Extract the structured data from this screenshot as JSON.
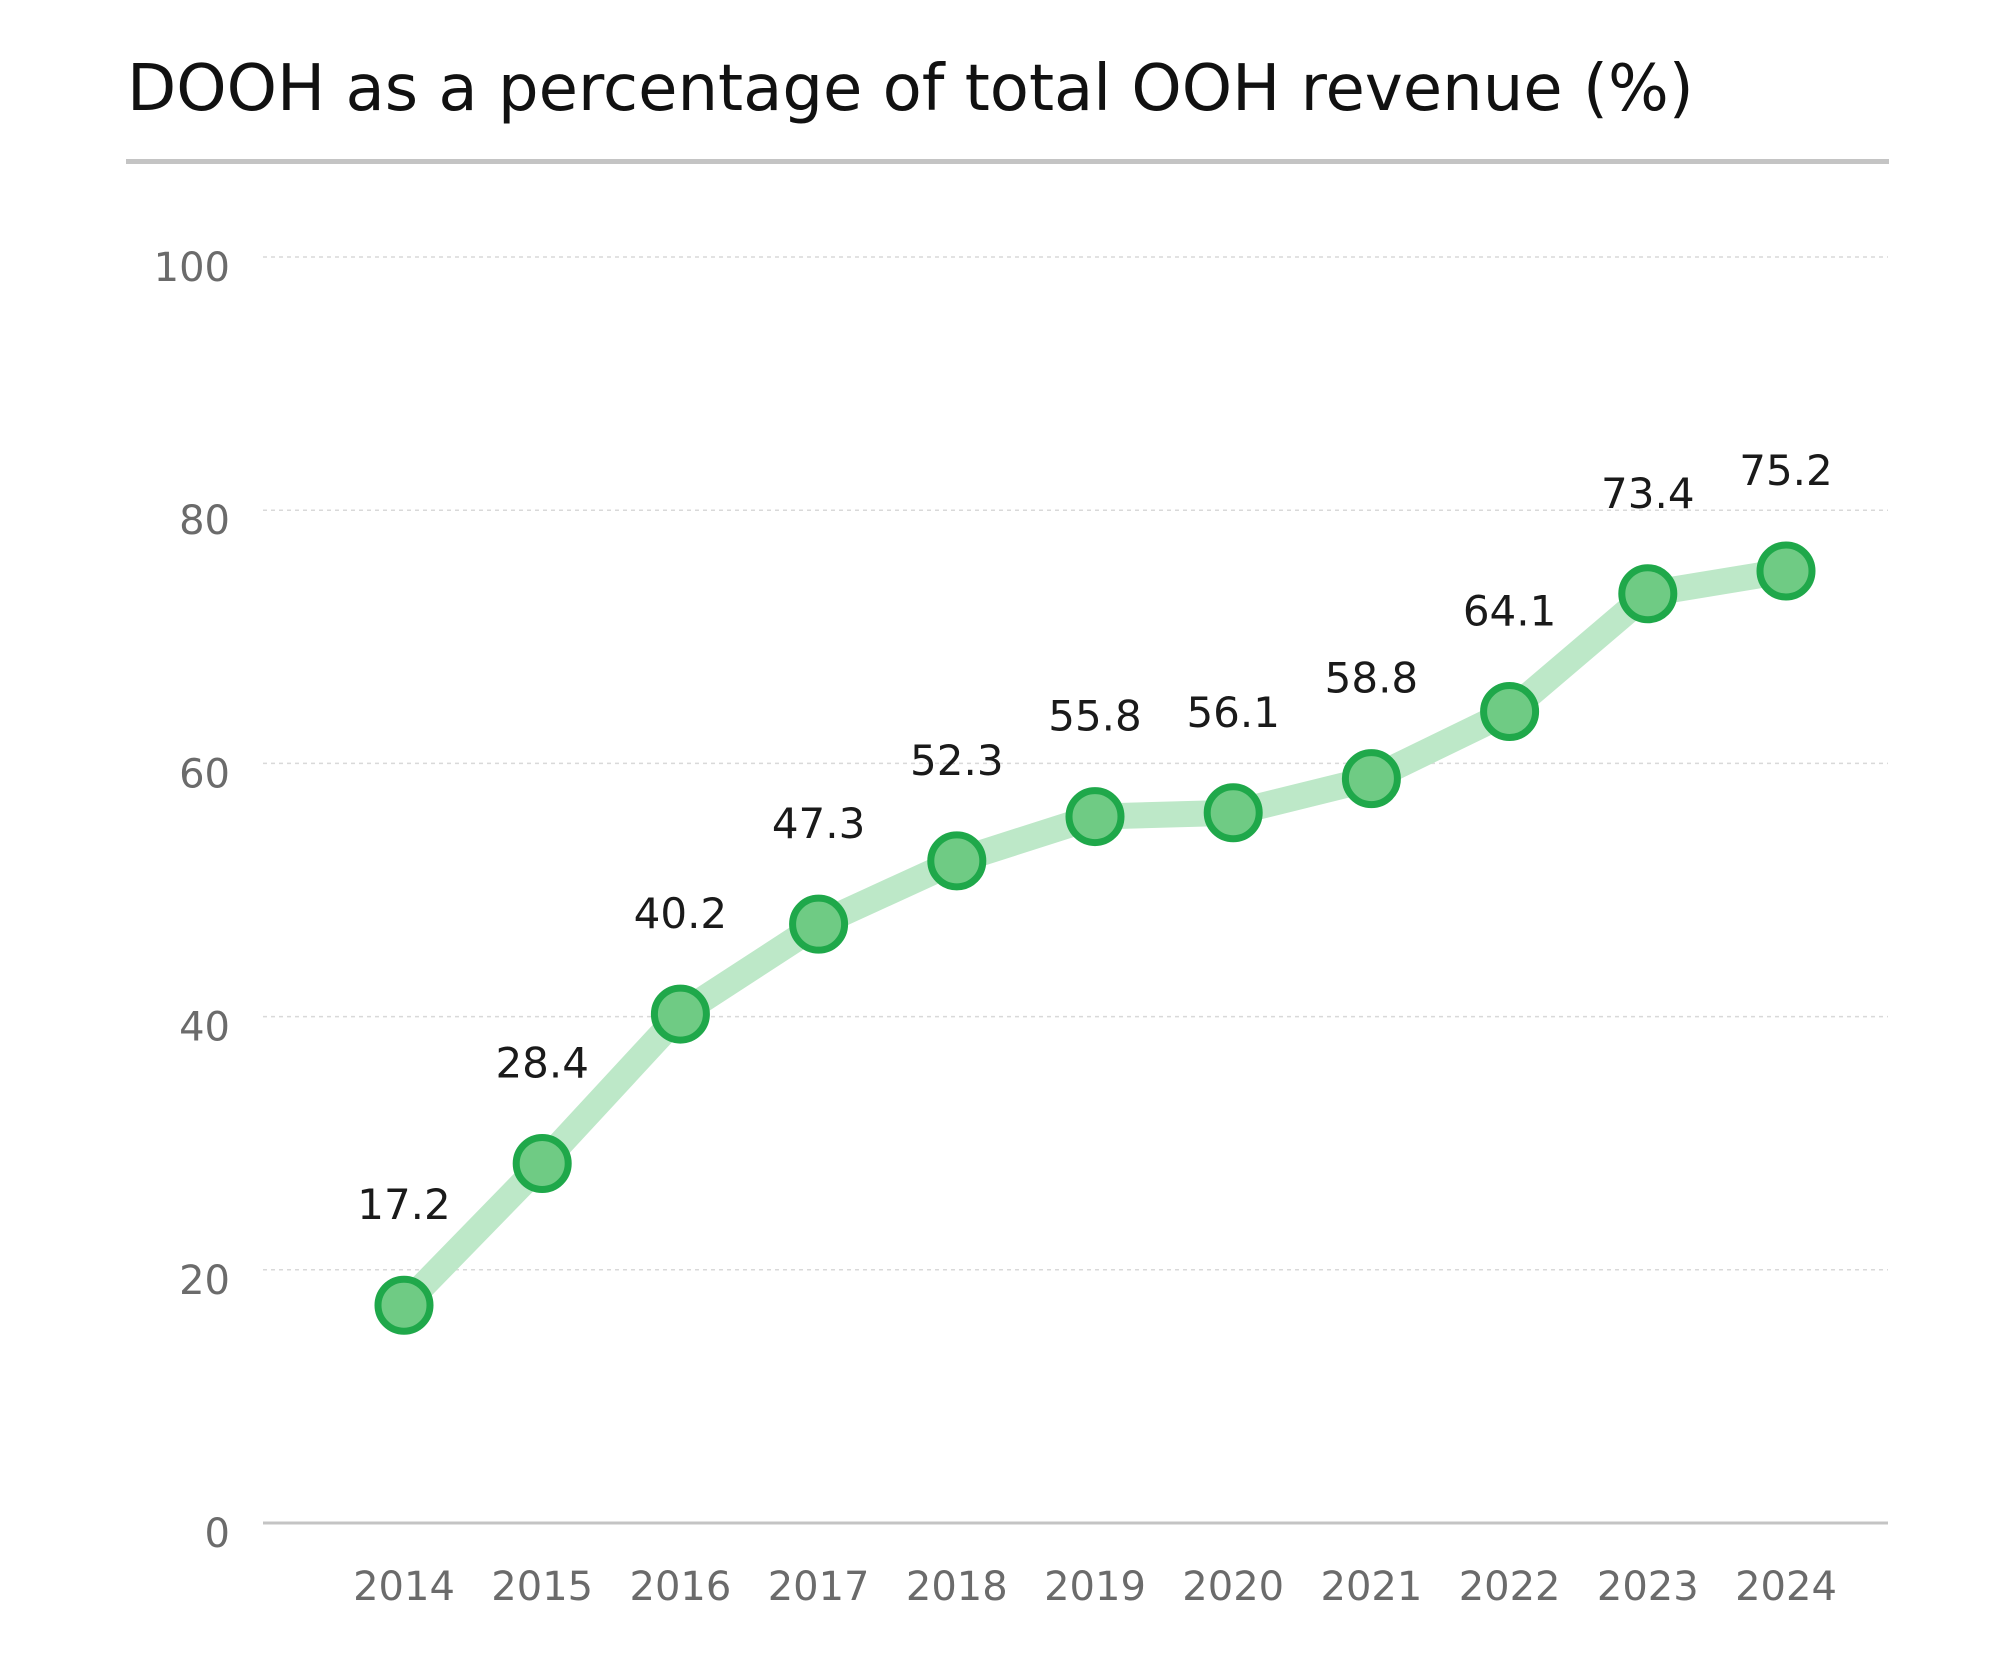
{
  "chart_data": {
    "type": "line",
    "title": "DOOH as a percentage of total OOH revenue (%)",
    "xlabel": "",
    "ylabel": "",
    "categories": [
      "2014",
      "2015",
      "2016",
      "2017",
      "2018",
      "2019",
      "2020",
      "2021",
      "2022",
      "2023",
      "2024"
    ],
    "values": [
      17.2,
      28.4,
      40.2,
      47.3,
      52.3,
      55.8,
      56.1,
      58.8,
      64.1,
      73.4,
      75.2
    ],
    "data_labels": [
      "17.2",
      "28.4",
      "40.2",
      "47.3",
      "52.3",
      "55.8",
      "56.1",
      "58.8",
      "64.1",
      "73.4",
      "75.2"
    ],
    "ylim": [
      0,
      100
    ],
    "yticks": [
      0,
      20,
      40,
      60,
      80,
      100
    ],
    "ytick_labels": [
      "0",
      "20",
      "40",
      "60",
      "80",
      "100"
    ],
    "grid": true,
    "colors": {
      "line": "#bde8c8",
      "marker_fill": "#6fcb84",
      "marker_stroke": "#1fa84a",
      "grid": "#d9d9d9",
      "axis": "#c4c4c4"
    }
  }
}
